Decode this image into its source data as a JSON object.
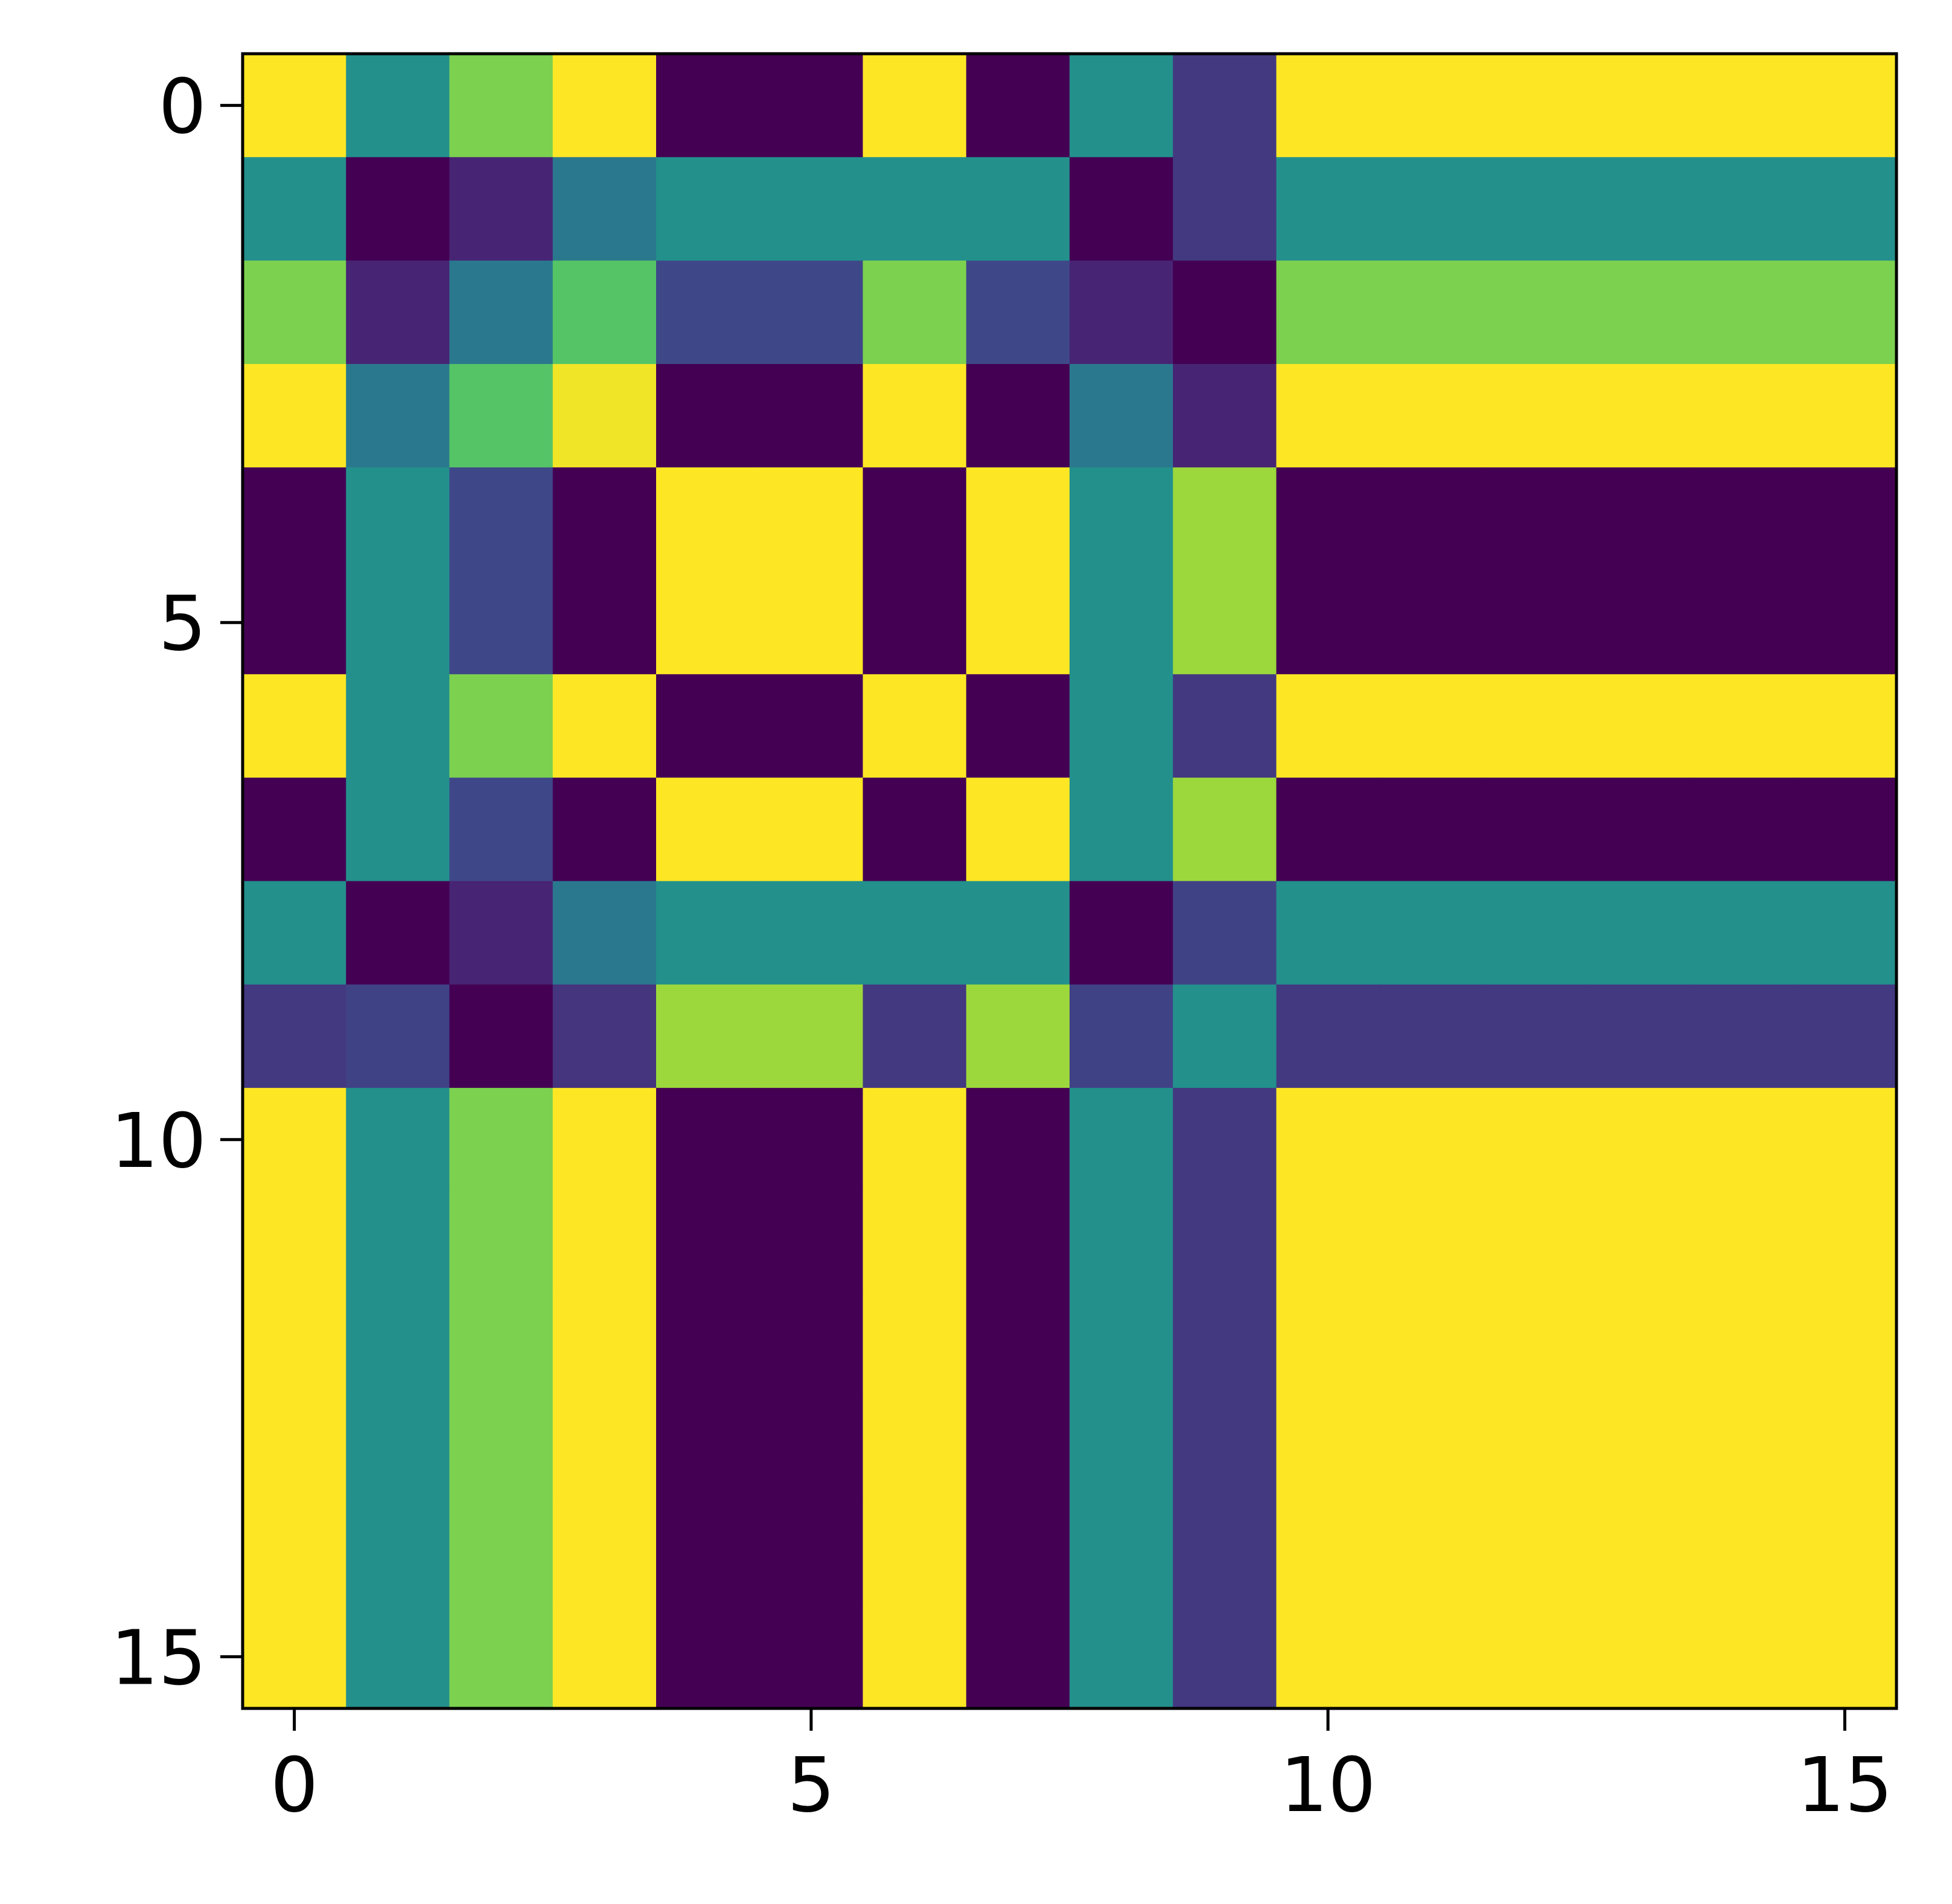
{
  "chart_data": {
    "type": "heatmap",
    "colormap": "viridis",
    "xlim": [
      -0.5,
      15.5
    ],
    "ylim": [
      15.5,
      -0.5
    ],
    "xticks": [
      0,
      5,
      10,
      15
    ],
    "yticks": [
      0,
      5,
      10,
      15
    ],
    "values": [
      [
        1,
        0.5,
        0.8,
        1,
        0,
        0,
        1,
        0,
        0.5,
        0.17,
        1,
        1,
        1,
        1,
        1,
        1
      ],
      [
        0.5,
        0,
        0.1,
        0.4,
        0.5,
        0.5,
        0.5,
        0.5,
        0,
        0.17,
        0.5,
        0.5,
        0.5,
        0.5,
        0.5,
        0.5
      ],
      [
        0.8,
        0.1,
        0.4,
        0.73,
        0.22,
        0.22,
        0.8,
        0.22,
        0.1,
        0,
        0.8,
        0.8,
        0.8,
        0.8,
        0.8,
        0.8
      ],
      [
        1,
        0.4,
        0.73,
        0.98,
        0,
        0,
        1,
        0,
        0.4,
        0.1,
        1,
        1,
        1,
        1,
        1,
        1
      ],
      [
        0,
        0.5,
        0.22,
        0,
        1,
        1,
        0,
        1,
        0.5,
        0.85,
        0,
        0,
        0,
        0,
        0,
        0
      ],
      [
        0,
        0.5,
        0.22,
        0,
        1,
        1,
        0,
        1,
        0.5,
        0.85,
        0,
        0,
        0,
        0,
        0,
        0
      ],
      [
        1,
        0.5,
        0.8,
        1,
        0,
        0,
        1,
        0,
        0.5,
        0.17,
        1,
        1,
        1,
        1,
        1,
        1
      ],
      [
        0,
        0.5,
        0.22,
        0,
        1,
        1,
        0,
        1,
        0.5,
        0.85,
        0,
        0,
        0,
        0,
        0,
        0
      ],
      [
        0.5,
        0,
        0.1,
        0.4,
        0.5,
        0.5,
        0.5,
        0.5,
        0,
        0.2,
        0.5,
        0.5,
        0.5,
        0.5,
        0.5,
        0.5
      ],
      [
        0.17,
        0.2,
        0,
        0.15,
        0.85,
        0.85,
        0.17,
        0.85,
        0.2,
        0.5,
        0.17,
        0.17,
        0.17,
        0.17,
        0.17,
        0.17
      ],
      [
        1,
        0.5,
        0.8,
        1,
        0,
        0,
        1,
        0,
        0.5,
        0.17,
        1,
        1,
        1,
        1,
        1,
        1
      ],
      [
        1,
        0.5,
        0.8,
        1,
        0,
        0,
        1,
        0,
        0.5,
        0.17,
        1,
        1,
        1,
        1,
        1,
        1
      ],
      [
        1,
        0.5,
        0.8,
        1,
        0,
        0,
        1,
        0,
        0.5,
        0.17,
        1,
        1,
        1,
        1,
        1,
        1
      ],
      [
        1,
        0.5,
        0.8,
        1,
        0,
        0,
        1,
        0,
        0.5,
        0.17,
        1,
        1,
        1,
        1,
        1,
        1
      ],
      [
        1,
        0.5,
        0.8,
        1,
        0,
        0,
        1,
        0,
        0.5,
        0.17,
        1,
        1,
        1,
        1,
        1,
        1
      ],
      [
        1,
        0.5,
        0.8,
        1,
        0,
        0,
        1,
        0,
        0.5,
        0.17,
        1,
        1,
        1,
        1,
        1,
        1
      ]
    ]
  }
}
